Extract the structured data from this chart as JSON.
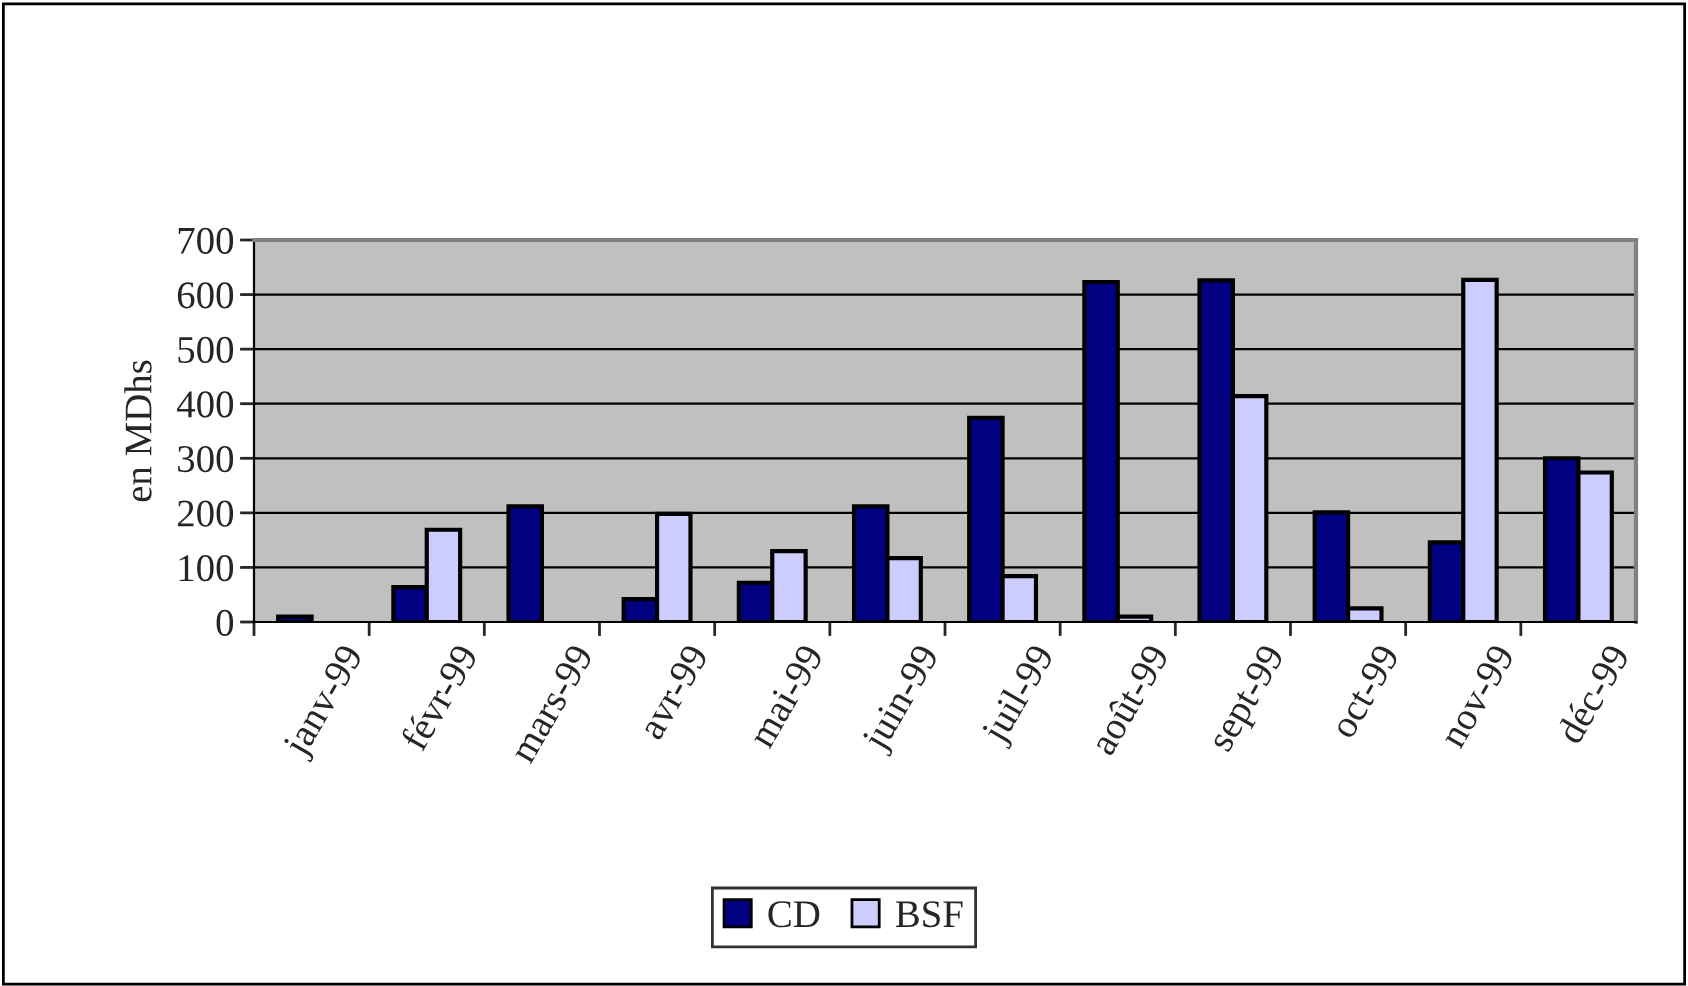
{
  "chart_data": {
    "type": "bar",
    "ylabel": "en MDhs",
    "categories": [
      "janv-99",
      "févr-99",
      "mars-99",
      "avr-99",
      "mai-99",
      "juin-99",
      "juil-99",
      "août-99",
      "sept-99",
      "oct-99",
      "nov-99",
      "déc-99"
    ],
    "series": [
      {
        "name": "CD",
        "color": "#000080",
        "values": [
          10,
          64,
          212,
          42,
          72,
          212,
          374,
          623,
          626,
          201,
          146,
          300
        ]
      },
      {
        "name": "BSF",
        "color": "#ccccff",
        "values": [
          null,
          169,
          null,
          198,
          130,
          117,
          84,
          10,
          414,
          25,
          627,
          274
        ]
      }
    ],
    "ylim": [
      0,
      700
    ],
    "yticks": [
      0,
      100,
      200,
      300,
      400,
      500,
      600,
      700
    ],
    "grid": "y",
    "legend": "bottom"
  }
}
